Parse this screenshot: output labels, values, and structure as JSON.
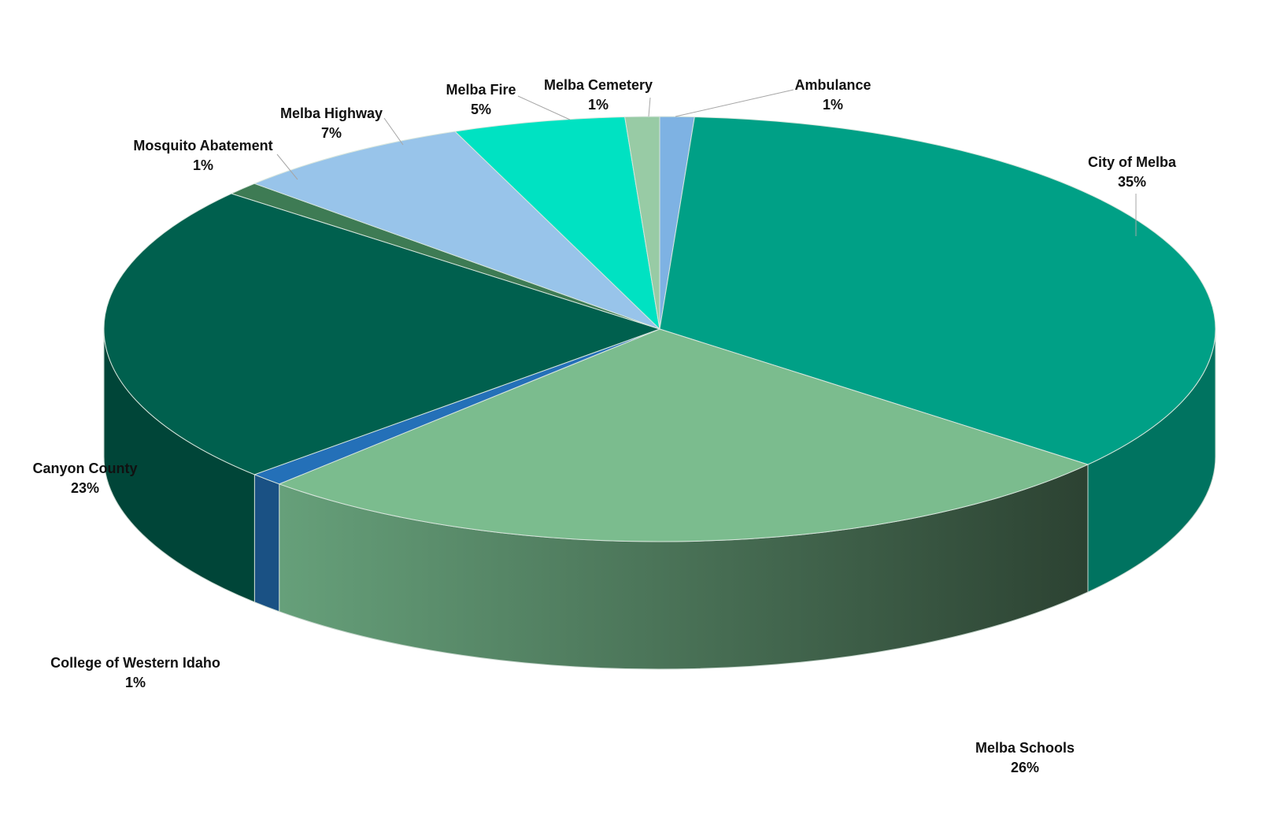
{
  "chart_data": {
    "type": "pie",
    "style": "3d",
    "title": "",
    "legend": "none",
    "slices": [
      {
        "label": "Ambulance",
        "value": 1,
        "display": "1%",
        "color": "#7EB2E3"
      },
      {
        "label": "City of Melba",
        "value": 35,
        "display": "35%",
        "color": "#00A086"
      },
      {
        "label": "Melba Schools",
        "value": 26,
        "display": "26%",
        "color": "#7BBC8E"
      },
      {
        "label": "College of Western Idaho",
        "value": 1,
        "display": "1%",
        "color": "#2470B8"
      },
      {
        "label": "Canyon County",
        "value": 23,
        "display": "23%",
        "color": "#00604E"
      },
      {
        "label": "Mosquito Abatement",
        "value": 1,
        "display": "1%",
        "color": "#3E7B54"
      },
      {
        "label": "Melba Highway",
        "value": 7,
        "display": "7%",
        "color": "#98C4EA"
      },
      {
        "label": "Melba Fire",
        "value": 5,
        "display": "5%",
        "color": "#00E2C2"
      },
      {
        "label": "Melba Cemetery",
        "value": 1,
        "display": "1%",
        "color": "#98CBA5"
      }
    ]
  }
}
